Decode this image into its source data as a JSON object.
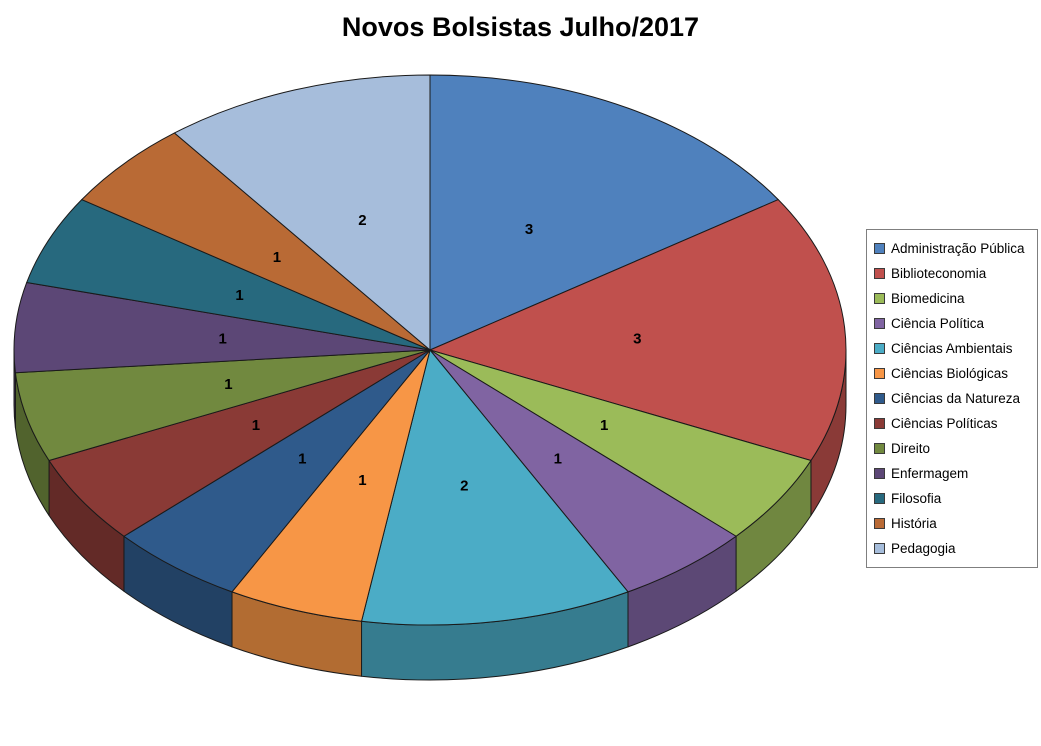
{
  "title": "Novos Bolsistas Julho/2017",
  "chart_data": {
    "type": "pie",
    "title": "Novos Bolsistas Julho/2017",
    "effect": "3d",
    "start_angle_deg": 0,
    "direction": "clockwise",
    "legend_position": "right",
    "total": 19,
    "data_labels": "values",
    "slices": [
      {
        "label": "Administração Pública",
        "value": 3,
        "color": "#4F81BD"
      },
      {
        "label": "Biblioteconomia",
        "value": 3,
        "color": "#C0504D"
      },
      {
        "label": "Biomedicina",
        "value": 1,
        "color": "#9BBB59"
      },
      {
        "label": "Ciência Política",
        "value": 1,
        "color": "#8064A2"
      },
      {
        "label": "Ciências Ambientais",
        "value": 2,
        "color": "#4BACC6"
      },
      {
        "label": "Ciências Biológicas",
        "value": 1,
        "color": "#F79646"
      },
      {
        "label": "Ciências da Natureza",
        "value": 1,
        "color": "#2F5A8B"
      },
      {
        "label": "Ciências Políticas",
        "value": 1,
        "color": "#8A3A36"
      },
      {
        "label": "Direito",
        "value": 1,
        "color": "#71893F"
      },
      {
        "label": "Enfermagem",
        "value": 1,
        "color": "#5C4776"
      },
      {
        "label": "Filosofia",
        "value": 1,
        "color": "#27697E"
      },
      {
        "label": "História",
        "value": 1,
        "color": "#B96A35"
      },
      {
        "label": "Pedagogia",
        "value": 2,
        "color": "#A6BDDB"
      }
    ]
  }
}
